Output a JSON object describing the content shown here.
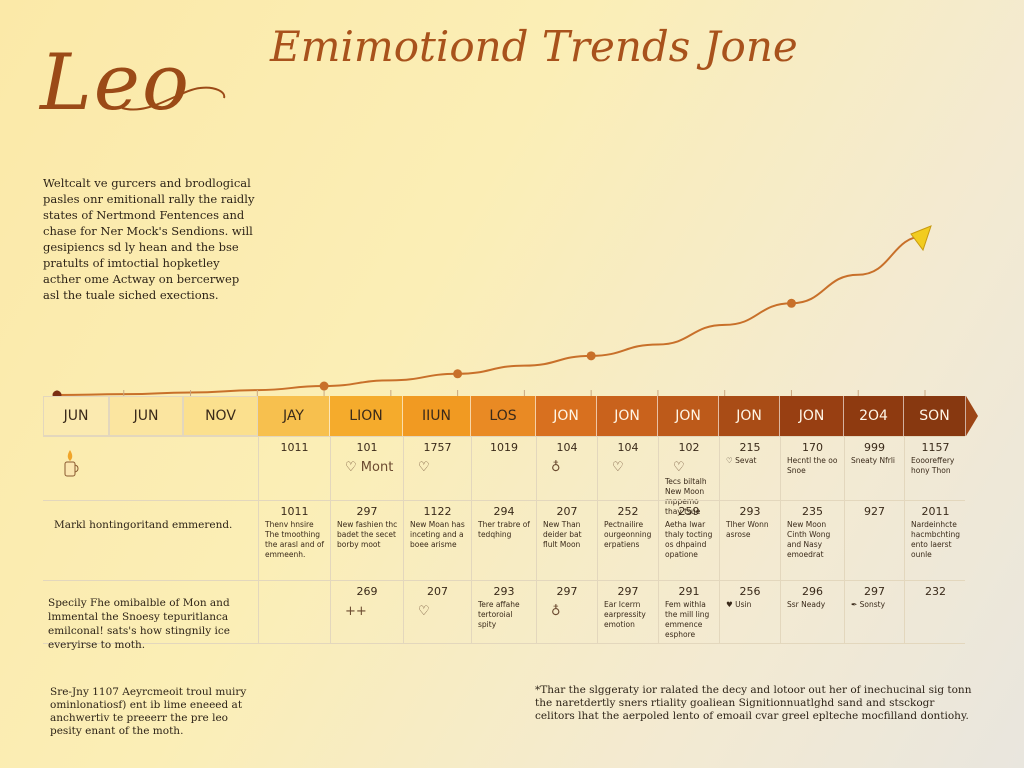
{
  "logo": "Leo",
  "title": "Emimotiond Trends Jone",
  "intro": "Weltcalt ve gurcers and brodlogical pasles onr emitionall rally the raidly states of Nertmond Fentences and chase for Ner Mock's Sendions. will gesipiencs sd ly hean and the bse pratults of imtoctial hopketley acther ome Actway on bercerwep asl the tuale siched exections.",
  "colors": {
    "accent": "#a8521c",
    "curve": "#c8702a",
    "arrow": "#f2cc1f",
    "bar_shades": [
      "#fbeab0",
      "#fbe5a0",
      "#fbe08e",
      "#f7c04e",
      "#f5ab2c",
      "#f19a22",
      "#e98a24",
      "#d8701f",
      "#c9621c",
      "#bd5a1a",
      "#a94c16",
      "#983f12",
      "#8e3a10",
      "#873810",
      "#9c4516"
    ]
  },
  "months": [
    "JUN",
    "JUN",
    "NOV",
    "JAY",
    "LION",
    "IIUN",
    "LOS",
    "JON",
    "JON",
    "JON",
    "JON",
    "JON",
    "2O4",
    "SON"
  ],
  "rows": {
    "row1": {
      "icon": "candle-icon",
      "cells": [
        {
          "num": "",
          "note": "",
          "icon": ""
        },
        {
          "num": "",
          "note": "",
          "icon": ""
        },
        {
          "num": "",
          "note": "",
          "icon": ""
        },
        {
          "num": "1011",
          "note": "",
          "icon": ""
        },
        {
          "num": "101",
          "note": "",
          "icon": "♡ Mont"
        },
        {
          "num": "1757",
          "note": "",
          "icon": "♡"
        },
        {
          "num": "1019",
          "note": "",
          "icon": ""
        },
        {
          "num": "104",
          "note": "",
          "icon": "♁"
        },
        {
          "num": "104",
          "note": "",
          "icon": "♡"
        },
        {
          "num": "102",
          "note": "Tecs biltalh New Moon rnppemo thay tsue",
          "icon": "♡"
        },
        {
          "num": "215",
          "note": "♡ Sevat",
          "icon": ""
        },
        {
          "num": "170",
          "note": "Hecntl the oo Snoe",
          "icon": ""
        },
        {
          "num": "999",
          "note": "Sneaty Nfrli",
          "icon": ""
        },
        {
          "num": "1157",
          "note": "Eoooreffery hony Thon",
          "icon": ""
        }
      ]
    },
    "row2": {
      "label": "Markl hontingoritand emmerend.",
      "cells": [
        {
          "num": "",
          "note": ""
        },
        {
          "num": "",
          "note": ""
        },
        {
          "num": "",
          "note": ""
        },
        {
          "num": "1011",
          "note": "Thenv hnsire The tmoothing the arasl and of emmeenh."
        },
        {
          "num": "297",
          "note": "New fashien thc badet the secet borby moot"
        },
        {
          "num": "1122",
          "note": "New Moan has inceting and a boee arisme"
        },
        {
          "num": "294",
          "note": "Ther trabre of tedqhing"
        },
        {
          "num": "207",
          "note": "New Than deider bat flult Moon"
        },
        {
          "num": "252",
          "note": "Pectnailire ourgeonning erpatiens"
        },
        {
          "num": "259",
          "note": "Aetha lwar thaly tocting os dhpaind opatione"
        },
        {
          "num": "293",
          "note": "Tlher Wonn asrose"
        },
        {
          "num": "235",
          "note": "New Moon Cinth Wong and Nasy emoedrat"
        },
        {
          "num": "927",
          "note": ""
        },
        {
          "num": "2011",
          "note": "Nardeinhcte hacmbchting ento laerst ounle"
        }
      ]
    },
    "row3": {
      "label": "Specily Fhe omibalble of Mon and lmmental the Snoesy tepuritlanca emilconal! sats's how stingnily ice everyirse to moth.",
      "cells": [
        {
          "num": "",
          "note": "",
          "icon": ""
        },
        {
          "num": "",
          "note": "",
          "icon": ""
        },
        {
          "num": "",
          "note": "",
          "icon": ""
        },
        {
          "num": "",
          "note": "",
          "icon": ""
        },
        {
          "num": "269",
          "note": "",
          "icon": "++"
        },
        {
          "num": "207",
          "note": "",
          "icon": "♡"
        },
        {
          "num": "293",
          "note": "Tere affahe tertoroial spity",
          "icon": ""
        },
        {
          "num": "297",
          "note": "",
          "icon": "♁"
        },
        {
          "num": "297",
          "note": "Ear Icerrn earpressity emotion",
          "icon": ""
        },
        {
          "num": "291",
          "note": "Fem withla the mill ling emmence esphore",
          "icon": ""
        },
        {
          "num": "256",
          "note": "♥ Usin",
          "icon": ""
        },
        {
          "num": "296",
          "note": "Ssr Neady",
          "icon": ""
        },
        {
          "num": "297",
          "note": "✒ Sonsty",
          "icon": ""
        },
        {
          "num": "232",
          "note": "",
          "icon": ""
        }
      ]
    }
  },
  "footer_left": "Sre-Jny 1107 Aeyrcmeoit troul muiry ominlonatiosf) ent ib lime eneeed at anchwertiv te preeerr the pre leo pesity enant of the moth.",
  "footer_right": "*Thar the slggeraty ior ralated the decy and lotoor out her of inechucinal sig tonn the naretdertly sners rtiality goaliean Signitionnuatlghd sand and stsckogr celitors lhat the aerpoled lento of emoail cvar greel eplteche mocfilland dontiohy.",
  "chart_data": {
    "type": "line",
    "categories": [
      "JUN",
      "JUN",
      "NOV",
      "JAY",
      "LION",
      "IIUN",
      "LOS",
      "JON",
      "JON",
      "JON",
      "JON",
      "JON",
      "2O4",
      "SON"
    ],
    "values": [
      0,
      0.2,
      0.6,
      1.2,
      2.2,
      3.6,
      5.2,
      7.2,
      9.6,
      12.4,
      17.2,
      22.5,
      29.5,
      39.0
    ],
    "markers": [
      0,
      4,
      6,
      8,
      11
    ],
    "arrow_end": true
  }
}
